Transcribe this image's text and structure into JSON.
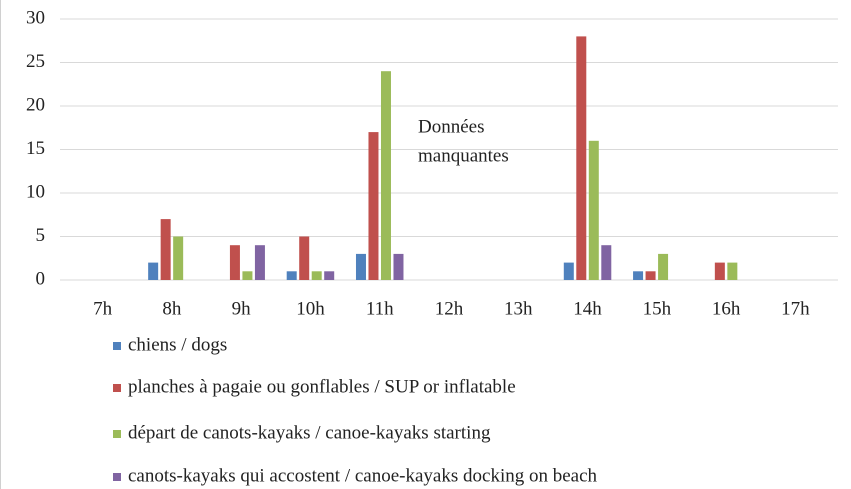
{
  "chart_data": {
    "type": "bar",
    "categories": [
      "7h",
      "8h",
      "9h",
      "10h",
      "11h",
      "12h",
      "13h",
      "14h",
      "15h",
      "16h",
      "17h"
    ],
    "series": [
      {
        "name": "chiens / dogs",
        "color": "#4f81bd",
        "values": [
          0,
          2,
          0,
          1,
          3,
          null,
          null,
          2,
          1,
          0,
          0
        ]
      },
      {
        "name": "planches à pagaie ou gonflables / SUP or inflatable",
        "color": "#c0504d",
        "values": [
          0,
          7,
          4,
          5,
          17,
          null,
          null,
          28,
          1,
          2,
          0
        ]
      },
      {
        "name": "départ de canots-kayaks / canoe-kayaks starting",
        "color": "#9bbb59",
        "values": [
          0,
          5,
          1,
          1,
          24,
          null,
          null,
          16,
          3,
          2,
          0
        ]
      },
      {
        "name": "canots-kayaks qui accostent / canoe-kayaks docking on beach",
        "color": "#8064a2",
        "values": [
          0,
          0,
          4,
          1,
          3,
          null,
          null,
          4,
          0,
          0,
          0
        ]
      }
    ],
    "annotation_lines": [
      "Données",
      "manquantes"
    ],
    "ylim": [
      0,
      30
    ],
    "yticks": [
      0,
      5,
      10,
      15,
      20,
      25,
      30
    ],
    "grid": true,
    "legend": "bottom"
  }
}
